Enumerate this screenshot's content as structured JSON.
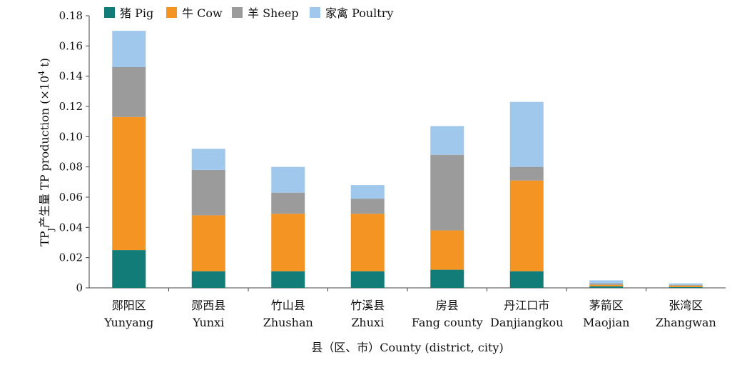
{
  "chart_data": {
    "type": "bar",
    "stacked": true,
    "ylabel_pre": "TP",
    "ylabel_sub": "J",
    "ylabel_post": "产生量 TP production (×10",
    "ylabel_sup": "4",
    "ylabel_end": " t)",
    "xlabel": "县（区、市）County (district, city)",
    "ylim": [
      0,
      0.18
    ],
    "yticks": [
      "0",
      "0.02",
      "0.04",
      "0.06",
      "0.08",
      "0.10",
      "0.12",
      "0.14",
      "0.16",
      "0.18"
    ],
    "legend_position": "top",
    "categories": [
      {
        "cn": "郧阳区",
        "en": "Yunyang"
      },
      {
        "cn": "郧西县",
        "en": "Yunxi"
      },
      {
        "cn": "竹山县",
        "en": "Zhushan"
      },
      {
        "cn": "竹溪县",
        "en": "Zhuxi"
      },
      {
        "cn": "房县",
        "en": "Fang county"
      },
      {
        "cn": "丹江口市",
        "en": "Danjiangkou"
      },
      {
        "cn": "茅箭区",
        "en": "Maojian"
      },
      {
        "cn": "张湾区",
        "en": "Zhangwan"
      }
    ],
    "series": [
      {
        "name": "猪 Pig",
        "color": "#127d78",
        "values": [
          0.025,
          0.011,
          0.011,
          0.011,
          0.012,
          0.011,
          0.001,
          0.0005
        ]
      },
      {
        "name": "牛 Cow",
        "color": "#f39423",
        "values": [
          0.088,
          0.037,
          0.038,
          0.038,
          0.026,
          0.06,
          0.001,
          0.001
        ]
      },
      {
        "name": "羊 Sheep",
        "color": "#9b9b9b",
        "values": [
          0.033,
          0.03,
          0.014,
          0.01,
          0.05,
          0.009,
          0.001,
          0.0005
        ]
      },
      {
        "name": "家禽 Poultry",
        "color": "#a0c8ec",
        "values": [
          0.024,
          0.014,
          0.017,
          0.009,
          0.019,
          0.043,
          0.002,
          0.001
        ]
      }
    ]
  }
}
